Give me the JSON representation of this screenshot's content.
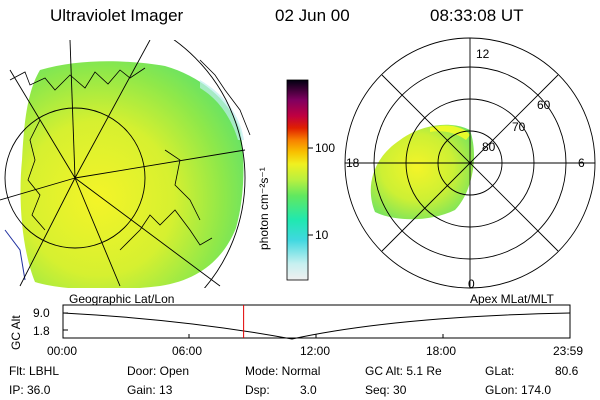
{
  "header": {
    "instrument": "Ultraviolet Imager",
    "date": "02 Jun 00",
    "time": "08:33:08 UT"
  },
  "colorbar": {
    "label": "photon cm⁻²s⁻¹",
    "ticks": [
      "100",
      "10"
    ],
    "colors": [
      "#e8e8e8",
      "#c8f0f0",
      "#40d8e0",
      "#20e8b0",
      "#60e860",
      "#b8f040",
      "#f0f020",
      "#f8c000",
      "#f88000",
      "#e02000",
      "#c00040",
      "#900060",
      "#400050",
      "#000010"
    ]
  },
  "polar_plot": {
    "labels": [
      "12",
      "18",
      "6",
      "0",
      "80",
      "70",
      "60"
    ]
  },
  "timeline": {
    "left_title": "Geographic Lat/Lon",
    "right_title": "Apex MLat/MLT",
    "yaxis_label": "GC Alt",
    "y_ticks": [
      "9.0",
      "1.8"
    ],
    "x_ticks": [
      "00:00",
      "06:00",
      "12:00",
      "18:00",
      "23:59"
    ],
    "marker_time_hours": 8.55,
    "marker_color": "#e00000"
  },
  "status": {
    "flt": "Flt: LBHL",
    "ip": "IP: 36.0",
    "door": "Door: Open",
    "gain": "Gain: 13",
    "mode": "Mode: Normal",
    "dsp": "Dsp:",
    "dsp_val": "3.0",
    "gcalt": "GC Alt: 5.1 Re",
    "seq": "Seq: 30",
    "glat": "GLat:",
    "glat_val": "80.6",
    "glon": "GLon: 174.0"
  }
}
